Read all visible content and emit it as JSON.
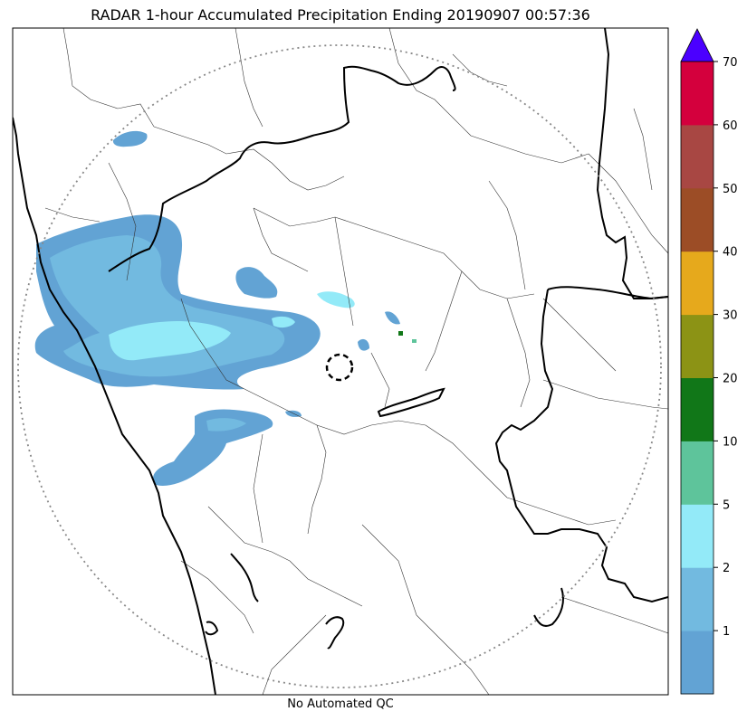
{
  "chart_data": {
    "type": "heatmap",
    "title": "RADAR 1-hour Accumulated Precipitation Ending 20190907 00:57:36",
    "caption": "No Automated QC",
    "colorbar": {
      "levels": [
        0,
        1,
        2,
        5,
        10,
        20,
        30,
        40,
        50,
        60,
        70
      ],
      "tick_labels": [
        "1",
        "2",
        "5",
        "10",
        "20",
        "30",
        "40",
        "50",
        "60",
        "70"
      ],
      "colors": [
        "#62a3d4",
        "#72bae0",
        "#93eaf8",
        "#5ec49b",
        "#117718",
        "#8c9315",
        "#e6a91c",
        "#9c4d26",
        "#a84743",
        "#d4003d"
      ],
      "extend_color": "#4b00ff",
      "extend": "max"
    }
  }
}
